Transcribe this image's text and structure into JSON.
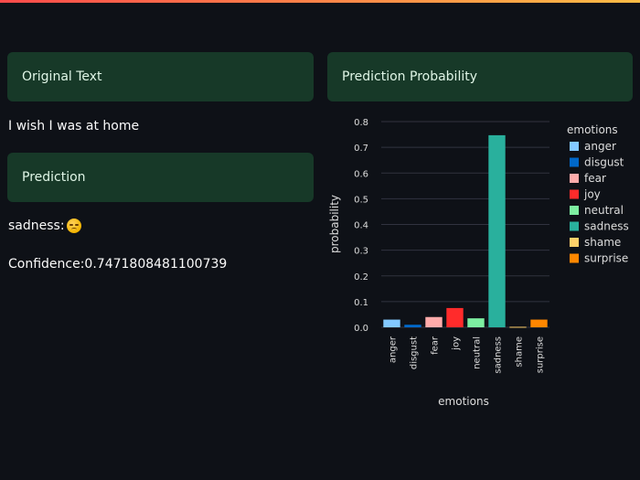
{
  "left": {
    "original_header": "Original Text",
    "original_text": "I wish I was at home",
    "prediction_header": "Prediction",
    "prediction_label": "sadness:",
    "prediction_emoji": "pensive-face-icon",
    "confidence_text": "Confidence:0.7471808481100739"
  },
  "right": {
    "probability_header": "Prediction Probability"
  },
  "colors": {
    "success_bg": "#173928",
    "page_bg": "#0e1117"
  },
  "chart_data": {
    "type": "bar",
    "categories": [
      "anger",
      "disgust",
      "fear",
      "joy",
      "neutral",
      "sadness",
      "shame",
      "surprise"
    ],
    "values": [
      0.03,
      0.01,
      0.04,
      0.075,
      0.035,
      0.747,
      0.002,
      0.03
    ],
    "colors": [
      "#83c9ff",
      "#0068c9",
      "#ffabab",
      "#ff2b2b",
      "#7defa1",
      "#29b09d",
      "#ffd16a",
      "#ff8700"
    ],
    "xlabel": "emotions",
    "ylabel": "probability",
    "ylim": [
      0,
      0.8
    ],
    "yticks": [
      0.0,
      0.1,
      0.2,
      0.3,
      0.4,
      0.5,
      0.6,
      0.7,
      0.8
    ],
    "ytick_labels": [
      "0.0",
      "0.1",
      "0.2",
      "0.3",
      "0.4",
      "0.5",
      "0.6",
      "0.7",
      "0.8"
    ],
    "legend_title": "emotions",
    "legend_placement": "right",
    "grid": true
  }
}
